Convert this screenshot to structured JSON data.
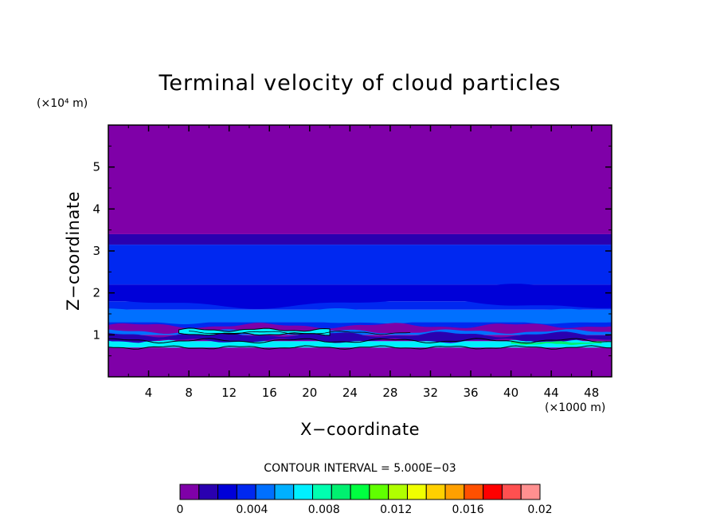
{
  "chart_data": {
    "type": "filled-contour",
    "title": "Terminal velocity of cloud particles",
    "xlabel": "X−coordinate",
    "ylabel": "Z−coordinate",
    "x_unit": "(×1000 m)",
    "y_unit": "(×10⁴ m)",
    "xlim": [
      0,
      50
    ],
    "ylim": [
      0,
      6
    ],
    "x_ticks": [
      4,
      8,
      12,
      16,
      20,
      24,
      28,
      32,
      36,
      40,
      44,
      48
    ],
    "y_ticks": [
      1,
      2,
      3,
      4,
      5
    ],
    "contour_interval_label": "CONTOUR INTERVAL = 5.000E−03",
    "colorbar": {
      "range": [
        0,
        0.02
      ],
      "tick_values": [
        0,
        0.004,
        0.008,
        0.012,
        0.016,
        0.02
      ],
      "tick_labels": [
        "0",
        "0.004",
        "0.008",
        "0.012",
        "0.016",
        "0.02"
      ],
      "colors": [
        "#7f00a8",
        "#2a00b0",
        "#0000d8",
        "#0028f0",
        "#0070ff",
        "#00b0ff",
        "#00f0ff",
        "#00ffb0",
        "#00f070",
        "#00ff40",
        "#60ff00",
        "#b0ff00",
        "#f0ff00",
        "#ffd000",
        "#ffa000",
        "#ff5000",
        "#ff0000",
        "#ff5050",
        "#ff9090"
      ]
    },
    "bands": [
      {
        "z": [
          0,
          0.7
        ],
        "level": 0
      },
      {
        "z": [
          0.7,
          0.85
        ],
        "level": 6
      },
      {
        "z": [
          0.85,
          1.0
        ],
        "level": 0
      },
      {
        "z": [
          1.0,
          1.15
        ],
        "level": 4
      },
      {
        "z": [
          1.15,
          1.3
        ],
        "level": 3
      },
      {
        "z": [
          1.3,
          1.6
        ],
        "level": 4
      },
      {
        "z": [
          1.6,
          1.8
        ],
        "level": 3
      },
      {
        "z": [
          1.8,
          2.2
        ],
        "level": 2
      },
      {
        "z": [
          2.2,
          3.15
        ],
        "level": 3
      },
      {
        "z": [
          3.15,
          3.4
        ],
        "level": 1
      },
      {
        "z": [
          3.4,
          6.0
        ],
        "level": 0
      }
    ]
  }
}
